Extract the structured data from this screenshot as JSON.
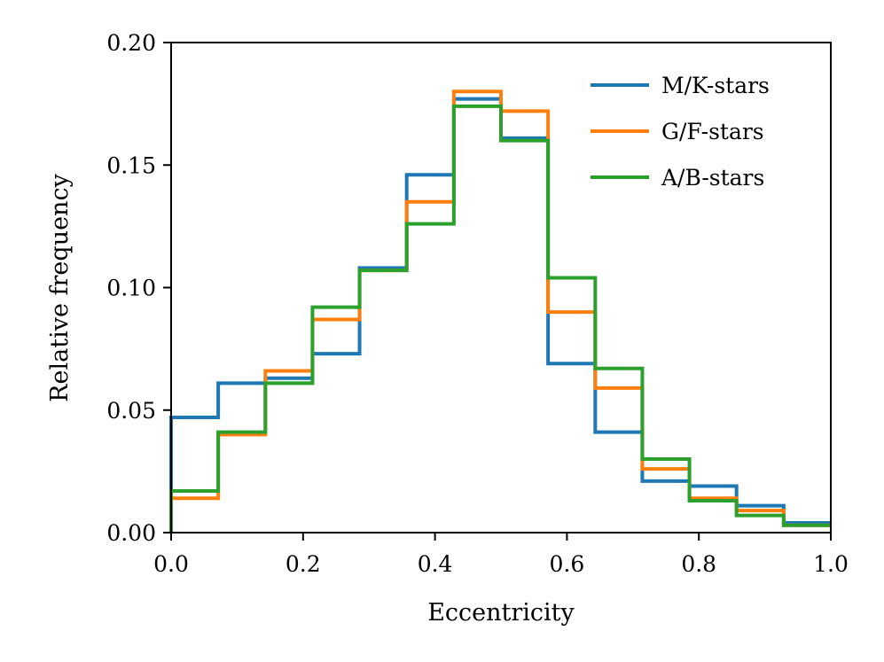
{
  "chart_data": {
    "type": "histogram-step",
    "xlabel": "Eccentricity",
    "ylabel": "Relative frequency",
    "xlim": [
      0.0,
      1.0
    ],
    "ylim": [
      0.0,
      0.2
    ],
    "xticks": [
      0.0,
      0.2,
      0.4,
      0.6,
      0.8,
      1.0
    ],
    "xtick_labels": [
      "0.0",
      "0.2",
      "0.4",
      "0.6",
      "0.8",
      "1.0"
    ],
    "yticks": [
      0.0,
      0.05,
      0.1,
      0.15,
      0.2
    ],
    "ytick_labels": [
      "0.00",
      "0.05",
      "0.10",
      "0.15",
      "0.20"
    ],
    "bin_edges": [
      0.0,
      0.0714,
      0.1429,
      0.2143,
      0.2857,
      0.3571,
      0.4286,
      0.5,
      0.5714,
      0.6429,
      0.7143,
      0.7857,
      0.8571,
      0.9286,
      1.0
    ],
    "legend_position": "top-right",
    "series": [
      {
        "name": "M/K-stars",
        "color": "#1f77b4",
        "values": [
          0.047,
          0.061,
          0.063,
          0.073,
          0.108,
          0.146,
          0.177,
          0.161,
          0.069,
          0.041,
          0.021,
          0.019,
          0.011,
          0.004
        ]
      },
      {
        "name": "G/F-stars",
        "color": "#ff7f0e",
        "values": [
          0.014,
          0.04,
          0.066,
          0.087,
          0.107,
          0.135,
          0.18,
          0.172,
          0.09,
          0.059,
          0.026,
          0.014,
          0.009,
          0.003
        ]
      },
      {
        "name": "A/B-stars",
        "color": "#2ca02c",
        "values": [
          0.017,
          0.041,
          0.061,
          0.092,
          0.107,
          0.126,
          0.174,
          0.16,
          0.104,
          0.067,
          0.03,
          0.013,
          0.007,
          0.003
        ]
      }
    ]
  }
}
